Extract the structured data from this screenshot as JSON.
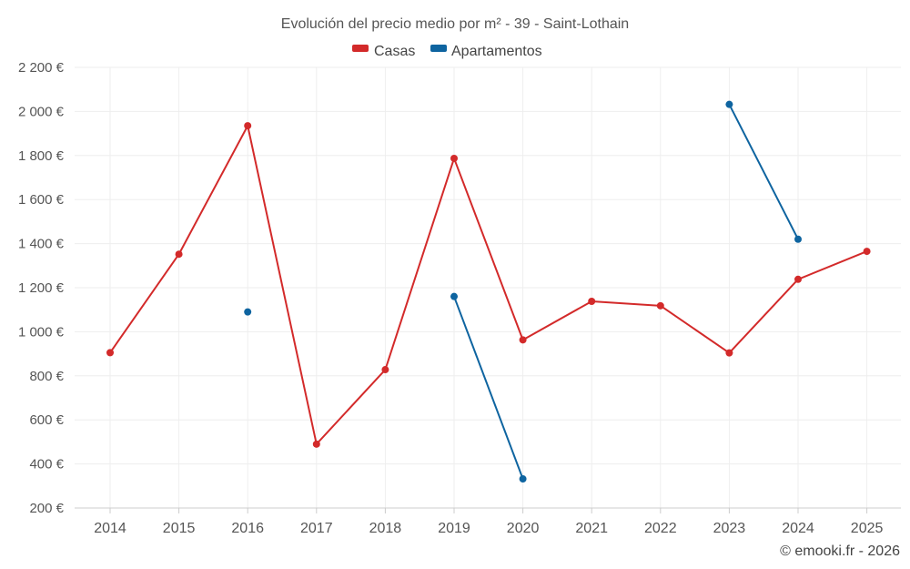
{
  "chart_data": {
    "type": "line",
    "title": "Evolución del precio medio por m² - 39 - Saint-Lothain",
    "x": [
      "2014",
      "2015",
      "2016",
      "2017",
      "2018",
      "2019",
      "2020",
      "2021",
      "2022",
      "2023",
      "2024",
      "2025"
    ],
    "ylim": [
      200,
      2200
    ],
    "yticks": [
      200,
      400,
      600,
      800,
      1000,
      1200,
      1400,
      1600,
      1800,
      2000,
      2200
    ],
    "ytick_labels": [
      "200 €",
      "400 €",
      "600 €",
      "800 €",
      "1 000 €",
      "1 200 €",
      "1 400 €",
      "1 600 €",
      "1 800 €",
      "2 000 €",
      "2 200 €"
    ],
    "grid": true,
    "legend_position": "top-center",
    "series": [
      {
        "name": "Casas",
        "color": "#d32a2a",
        "values": [
          905,
          1352,
          1935,
          490,
          828,
          1787,
          963,
          1138,
          1118,
          904,
          1238,
          1365
        ]
      },
      {
        "name": "Apartamentos",
        "color": "#0e64a0",
        "values": [
          null,
          null,
          1090,
          null,
          null,
          1160,
          332,
          null,
          null,
          2032,
          1420,
          null
        ]
      }
    ]
  },
  "credit": "© emooki.fr - 2026"
}
